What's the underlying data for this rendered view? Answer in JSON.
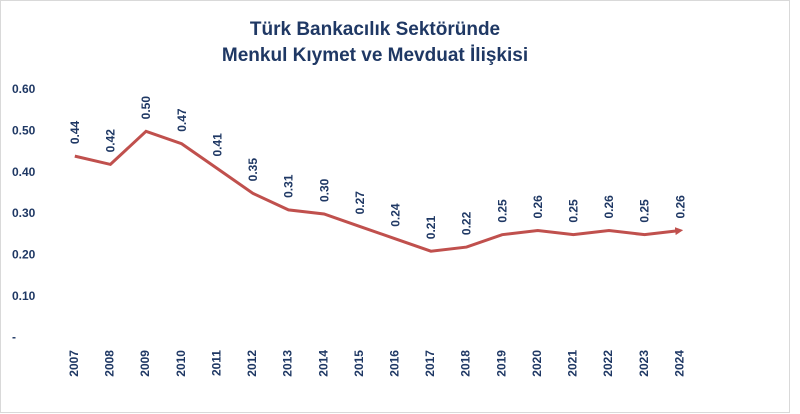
{
  "chart_data": {
    "type": "line",
    "title": [
      "Türk Bankacılık Sektöründe",
      "Menkul Kıymet ve Mevduat İlişkisi"
    ],
    "categories": [
      "2007",
      "2008",
      "2009",
      "2010",
      "2011",
      "2012",
      "2013",
      "2014",
      "2015",
      "2016",
      "2017",
      "2018",
      "2019",
      "2020",
      "2021",
      "2022",
      "2023",
      "2024"
    ],
    "series": [
      {
        "color": "#c0504d",
        "values": [
          0.44,
          0.42,
          0.5,
          0.47,
          0.41,
          0.35,
          0.31,
          0.3,
          0.27,
          0.24,
          0.21,
          0.22,
          0.25,
          0.26,
          0.25,
          0.26,
          0.25,
          0.26
        ],
        "value_labels": [
          "0.44",
          "0.42",
          "0.50",
          "0.47",
          "0.41",
          "0.35",
          "0.31",
          "0.30",
          "0.27",
          "0.24",
          "0.21",
          "0.22",
          "0.25",
          "0.26",
          "0.25",
          "0.26",
          "0.25",
          "0.26"
        ]
      }
    ],
    "ylim": [
      0,
      0.6
    ],
    "yticks": [
      {
        "value": 0,
        "label": "-"
      },
      {
        "value": 0.1,
        "label": "0.10"
      },
      {
        "value": 0.2,
        "label": "0.20"
      },
      {
        "value": 0.3,
        "label": "0.30"
      },
      {
        "value": 0.4,
        "label": "0.40"
      },
      {
        "value": 0.5,
        "label": "0.50"
      },
      {
        "value": 0.6,
        "label": "0.60"
      }
    ],
    "grid": false
  }
}
